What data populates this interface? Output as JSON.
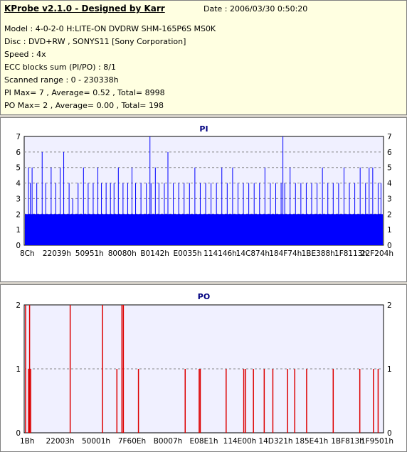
{
  "header": {
    "app_title": "KProbe v2.1.0 - Designed by Karr",
    "date": "Date : 2006/03/30 0:50:20",
    "lines": [
      "Model : 4-0-2-0 H:LITE-ON DVDRW SHM-165P6S MS0K",
      "Disc : DVD+RW , SONYS11 [Sony Corporation]",
      "Speed : 4x",
      "ECC blocks sum (PI/PO) : 8/1",
      "Scanned range : 0 - 230338h",
      "PI Max= 7 , Average= 0.52 , Total= 8998",
      "PO Max= 2 , Average= 0.00 , Total= 198"
    ]
  },
  "chart_data": [
    {
      "type": "bar",
      "title": "PI",
      "ylim": [
        0,
        7
      ],
      "yticks": [
        "0",
        "1",
        "2",
        "3",
        "4",
        "5",
        "6",
        "7"
      ],
      "xticks": [
        "8Ch",
        "22039h",
        "50951h",
        "80080h",
        "B0142h",
        "E0035h",
        "114146h",
        "14C874h",
        "184F74h",
        "1BE388h",
        "1F8113h",
        "22F204h"
      ],
      "grid": true,
      "color": "#0000ff",
      "baseline": 2,
      "spikes": [
        {
          "x": 0.012,
          "y": 5
        },
        {
          "x": 0.017,
          "y": 4
        },
        {
          "x": 0.022,
          "y": 5
        },
        {
          "x": 0.035,
          "y": 4
        },
        {
          "x": 0.05,
          "y": 6
        },
        {
          "x": 0.06,
          "y": 4
        },
        {
          "x": 0.075,
          "y": 5
        },
        {
          "x": 0.088,
          "y": 4
        },
        {
          "x": 0.1,
          "y": 5
        },
        {
          "x": 0.11,
          "y": 6
        },
        {
          "x": 0.125,
          "y": 4
        },
        {
          "x": 0.135,
          "y": 3
        },
        {
          "x": 0.15,
          "y": 4
        },
        {
          "x": 0.165,
          "y": 5
        },
        {
          "x": 0.178,
          "y": 4
        },
        {
          "x": 0.192,
          "y": 4
        },
        {
          "x": 0.205,
          "y": 5
        },
        {
          "x": 0.215,
          "y": 4
        },
        {
          "x": 0.228,
          "y": 4
        },
        {
          "x": 0.24,
          "y": 4
        },
        {
          "x": 0.25,
          "y": 4
        },
        {
          "x": 0.262,
          "y": 5
        },
        {
          "x": 0.275,
          "y": 4
        },
        {
          "x": 0.288,
          "y": 4
        },
        {
          "x": 0.3,
          "y": 5
        },
        {
          "x": 0.31,
          "y": 4
        },
        {
          "x": 0.325,
          "y": 4
        },
        {
          "x": 0.34,
          "y": 4
        },
        {
          "x": 0.353,
          "y": 4
        },
        {
          "x": 0.35,
          "y": 7
        },
        {
          "x": 0.365,
          "y": 5
        },
        {
          "x": 0.375,
          "y": 4
        },
        {
          "x": 0.39,
          "y": 4
        },
        {
          "x": 0.4,
          "y": 6
        },
        {
          "x": 0.415,
          "y": 4
        },
        {
          "x": 0.43,
          "y": 4
        },
        {
          "x": 0.445,
          "y": 4
        },
        {
          "x": 0.46,
          "y": 4
        },
        {
          "x": 0.475,
          "y": 5
        },
        {
          "x": 0.49,
          "y": 4
        },
        {
          "x": 0.505,
          "y": 4
        },
        {
          "x": 0.52,
          "y": 4
        },
        {
          "x": 0.535,
          "y": 4
        },
        {
          "x": 0.55,
          "y": 5
        },
        {
          "x": 0.565,
          "y": 4
        },
        {
          "x": 0.58,
          "y": 5
        },
        {
          "x": 0.595,
          "y": 4
        },
        {
          "x": 0.61,
          "y": 4
        },
        {
          "x": 0.625,
          "y": 4
        },
        {
          "x": 0.64,
          "y": 4
        },
        {
          "x": 0.655,
          "y": 4
        },
        {
          "x": 0.67,
          "y": 5
        },
        {
          "x": 0.685,
          "y": 4
        },
        {
          "x": 0.7,
          "y": 4
        },
        {
          "x": 0.715,
          "y": 4
        },
        {
          "x": 0.725,
          "y": 4
        },
        {
          "x": 0.74,
          "y": 5
        },
        {
          "x": 0.755,
          "y": 4
        },
        {
          "x": 0.72,
          "y": 7
        },
        {
          "x": 0.77,
          "y": 4
        },
        {
          "x": 0.785,
          "y": 4
        },
        {
          "x": 0.8,
          "y": 4
        },
        {
          "x": 0.815,
          "y": 4
        },
        {
          "x": 0.83,
          "y": 5
        },
        {
          "x": 0.845,
          "y": 4
        },
        {
          "x": 0.86,
          "y": 4
        },
        {
          "x": 0.875,
          "y": 4
        },
        {
          "x": 0.89,
          "y": 5
        },
        {
          "x": 0.905,
          "y": 4
        },
        {
          "x": 0.92,
          "y": 4
        },
        {
          "x": 0.935,
          "y": 5
        },
        {
          "x": 0.95,
          "y": 4
        },
        {
          "x": 0.96,
          "y": 5
        },
        {
          "x": 0.97,
          "y": 5
        },
        {
          "x": 0.985,
          "y": 4
        },
        {
          "x": 0.993,
          "y": 4
        }
      ]
    },
    {
      "type": "bar",
      "title": "PO",
      "ylim": [
        0,
        2
      ],
      "yticks": [
        "0",
        "1",
        "2"
      ],
      "xticks": [
        "1Bh",
        "22003h",
        "50001h",
        "7F60Eh",
        "B0007h",
        "E08E1h",
        "114E00h",
        "14D321h",
        "185E41h",
        "1BF813h",
        "1F9501h"
      ],
      "grid": true,
      "color": "#dd0000",
      "bars": [
        {
          "x": 0.004,
          "y": 2
        },
        {
          "x": 0.012,
          "y": 1
        },
        {
          "x": 0.015,
          "y": 2
        },
        {
          "x": 0.018,
          "y": 1
        },
        {
          "x": 0.128,
          "y": 2
        },
        {
          "x": 0.218,
          "y": 2
        },
        {
          "x": 0.258,
          "y": 1
        },
        {
          "x": 0.272,
          "y": 2
        },
        {
          "x": 0.276,
          "y": 2
        },
        {
          "x": 0.318,
          "y": 1
        },
        {
          "x": 0.448,
          "y": 1
        },
        {
          "x": 0.487,
          "y": 1
        },
        {
          "x": 0.49,
          "y": 1
        },
        {
          "x": 0.562,
          "y": 1
        },
        {
          "x": 0.611,
          "y": 1
        },
        {
          "x": 0.616,
          "y": 1
        },
        {
          "x": 0.638,
          "y": 1
        },
        {
          "x": 0.668,
          "y": 1
        },
        {
          "x": 0.692,
          "y": 1
        },
        {
          "x": 0.733,
          "y": 1
        },
        {
          "x": 0.753,
          "y": 1
        },
        {
          "x": 0.786,
          "y": 1
        },
        {
          "x": 0.86,
          "y": 1
        },
        {
          "x": 0.934,
          "y": 1
        },
        {
          "x": 0.972,
          "y": 1
        },
        {
          "x": 0.985,
          "y": 1
        }
      ]
    }
  ]
}
